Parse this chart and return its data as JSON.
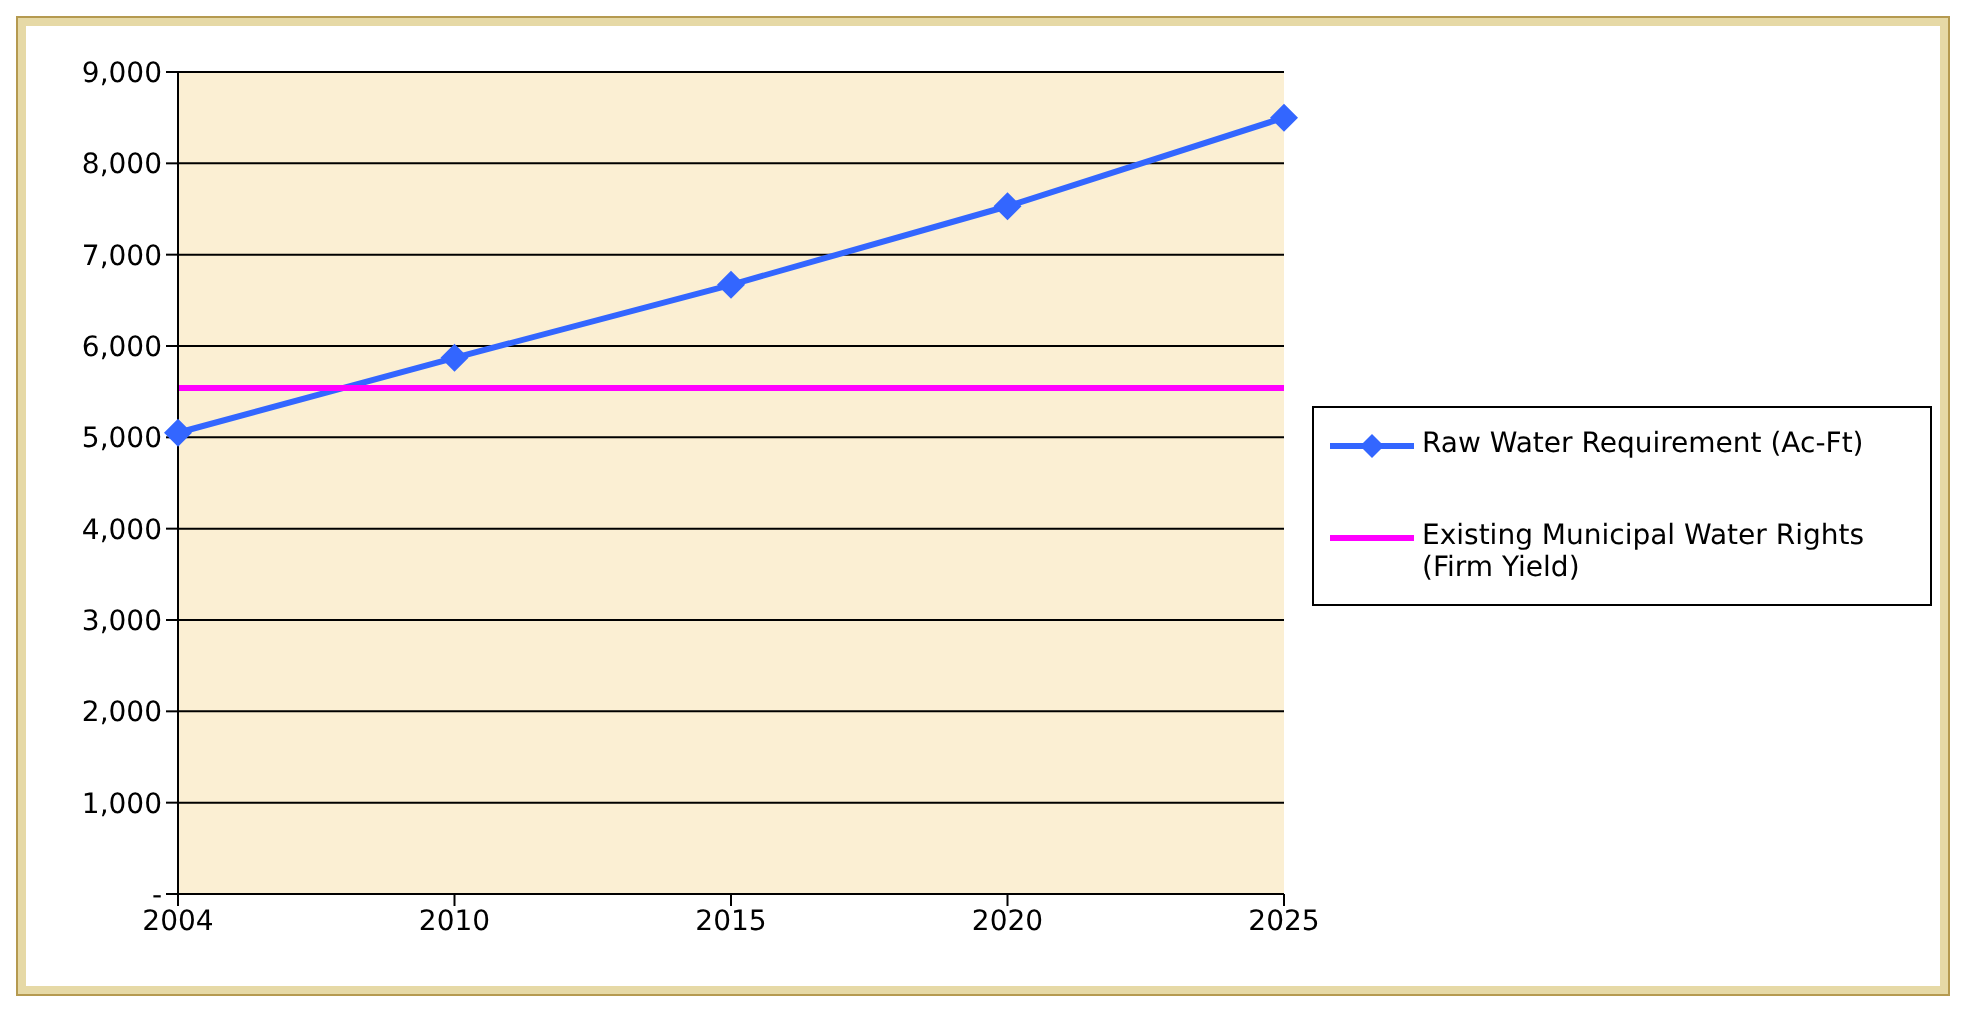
{
  "chart_data": {
    "type": "line",
    "categories": [
      "2004",
      "2010",
      "2015",
      "2020",
      "2025"
    ],
    "series": [
      {
        "name": "Raw Water Requirement (Ac-Ft)",
        "color": "#3366ff",
        "marker": "diamond",
        "values": [
          5050,
          5870,
          6670,
          7530,
          8500
        ]
      },
      {
        "name": "Existing Municipal Water Rights (Firm Yield)",
        "color": "#ff00ff",
        "marker": "none",
        "values": [
          5540,
          5540,
          5540,
          5540,
          5540
        ]
      }
    ],
    "ylim": [
      0,
      9000
    ],
    "yticks": [
      {
        "value": 0,
        "label": "-"
      },
      {
        "value": 1000,
        "label": "1,000"
      },
      {
        "value": 2000,
        "label": "2,000"
      },
      {
        "value": 3000,
        "label": "3,000"
      },
      {
        "value": 4000,
        "label": "4,000"
      },
      {
        "value": 5000,
        "label": "5,000"
      },
      {
        "value": 6000,
        "label": "6,000"
      },
      {
        "value": 7000,
        "label": "7,000"
      },
      {
        "value": 8000,
        "label": "8,000"
      },
      {
        "value": 9000,
        "label": "9,000"
      }
    ],
    "grid": "y",
    "legend": "right",
    "line_style": "solid"
  }
}
